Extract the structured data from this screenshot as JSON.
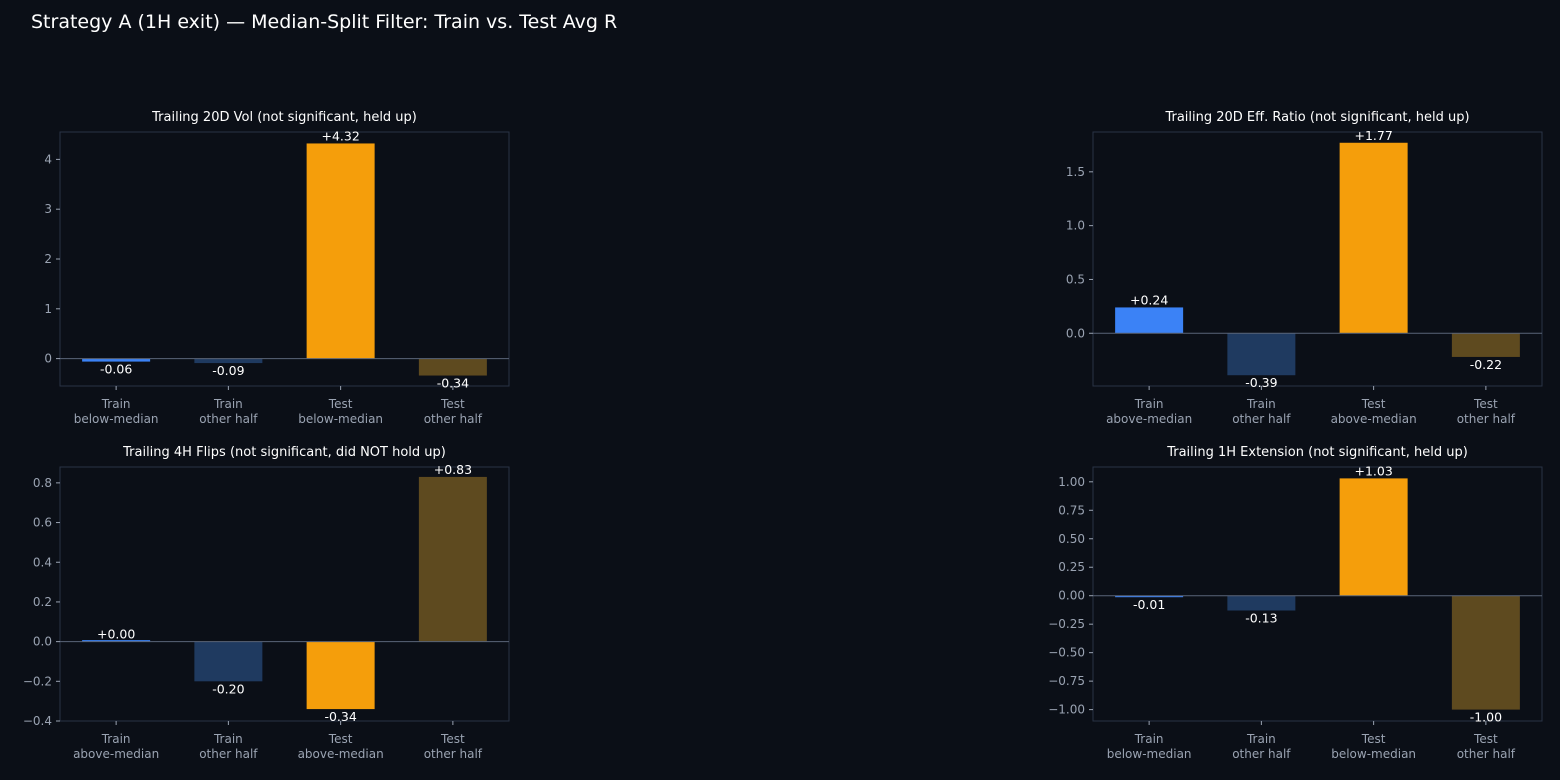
{
  "page": {
    "suptitle": "Strategy A (1H exit) — Median-Split Filter: Train vs. Test Avg R"
  },
  "colors": {
    "background": "#0b0f17",
    "plot_border": "#2a3345",
    "axis_text": "#9aa3b2",
    "train_primary": "#3b82f6",
    "train_other": "#1f3a60",
    "test_primary": "#f59e0b",
    "test_other": "#5e4a1f"
  },
  "chart_data": [
    {
      "id": "tl",
      "type": "bar",
      "title": "Trailing 20D Vol (not significant, held up)",
      "categories": [
        "Train\nbelow-median",
        "Train\nother half",
        "Test\nbelow-median",
        "Test\nother half"
      ],
      "values": [
        -0.06,
        -0.09,
        4.32,
        -0.34
      ],
      "labels": [
        "-0.06",
        "-0.09",
        "+4.32",
        "-0.34"
      ],
      "ylim": [
        -0.55,
        4.55
      ],
      "yticks": [
        0,
        1,
        2,
        3,
        4
      ],
      "ytick_labels": [
        "0",
        "1",
        "2",
        "3",
        "4"
      ],
      "legend": "none"
    },
    {
      "id": "tr",
      "type": "bar",
      "title": "Trailing 20D Eff. Ratio (not significant, held up)",
      "categories": [
        "Train\nabove-median",
        "Train\nother half",
        "Test\nabove-median",
        "Test\nother half"
      ],
      "values": [
        0.24,
        -0.39,
        1.77,
        -0.22
      ],
      "labels": [
        "+0.24",
        "-0.39",
        "+1.77",
        "-0.22"
      ],
      "ylim": [
        -0.49,
        1.87
      ],
      "yticks": [
        0.0,
        0.5,
        1.0,
        1.5
      ],
      "ytick_labels": [
        "0.0",
        "0.5",
        "1.0",
        "1.5"
      ],
      "legend": "none"
    },
    {
      "id": "bl",
      "type": "bar",
      "title": "Trailing 4H Flips (not significant, did NOT hold up)",
      "categories": [
        "Train\nabove-median",
        "Train\nother half",
        "Test\nabove-median",
        "Test\nother half"
      ],
      "values": [
        0.0,
        -0.2,
        -0.34,
        0.83
      ],
      "labels": [
        "+0.00",
        "-0.20",
        "-0.34",
        "+0.83"
      ],
      "ylim": [
        -0.4,
        0.88
      ],
      "yticks": [
        -0.4,
        -0.2,
        0.0,
        0.2,
        0.4,
        0.6,
        0.8
      ],
      "ytick_labels": [
        "−0.4",
        "−0.2",
        "0.0",
        "0.2",
        "0.4",
        "0.6",
        "0.8"
      ],
      "legend": "none"
    },
    {
      "id": "br",
      "type": "bar",
      "title": "Trailing 1H Extension (not significant, held up)",
      "categories": [
        "Train\nbelow-median",
        "Train\nother half",
        "Test\nbelow-median",
        "Test\nother half"
      ],
      "values": [
        -0.01,
        -0.13,
        1.03,
        -1.0
      ],
      "labels": [
        "-0.01",
        "-0.13",
        "+1.03",
        "-1.00"
      ],
      "ylim": [
        -1.1,
        1.13
      ],
      "yticks": [
        -1.0,
        -0.75,
        -0.5,
        -0.25,
        0.0,
        0.25,
        0.5,
        0.75,
        1.0
      ],
      "ytick_labels": [
        "−1.00",
        "−0.75",
        "−0.50",
        "−0.25",
        "0.00",
        "0.25",
        "0.50",
        "0.75",
        "1.00"
      ],
      "legend": "none"
    }
  ]
}
